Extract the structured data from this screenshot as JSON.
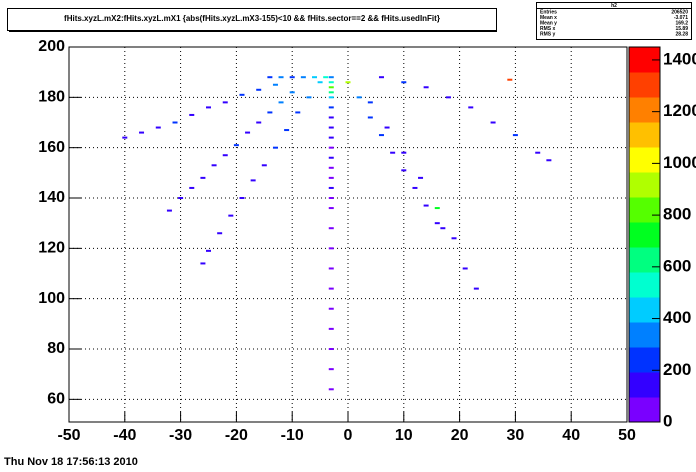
{
  "chart_data": {
    "type": "histogram2d",
    "title": "fHits.xyzL.mX2:fHits.xyzL.mX1  {abs(fHits.xyzL.mX3-155)<10 && fHits.sector==2  && fHits.usedInFit}",
    "footer": "Thu Nov 18 17:56:13 2010",
    "stats": {
      "name": "h2",
      "rows": [
        [
          "Entries",
          "206520"
        ],
        [
          "Mean x",
          "-3.071"
        ],
        [
          "Mean y",
          "169.2"
        ],
        [
          "RMS x",
          "15.89"
        ],
        [
          "RMS y",
          "28.28"
        ]
      ]
    },
    "xlim": [
      -50,
      50
    ],
    "xticks": [
      -50,
      -40,
      -30,
      -20,
      -10,
      0,
      10,
      20,
      30,
      40,
      50
    ],
    "ylim": [
      51,
      200
    ],
    "yticks": [
      60,
      80,
      100,
      120,
      140,
      160,
      180,
      200
    ],
    "zlim": [
      0,
      1450
    ],
    "zticks": [
      0,
      200,
      400,
      600,
      800,
      1000,
      1200,
      1400
    ],
    "grid": true,
    "palette": [
      "#7a00ff",
      "#3300ff",
      "#0033ff",
      "#0080ff",
      "#00ccff",
      "#00ffd0",
      "#00ff80",
      "#00ff20",
      "#55ff00",
      "#b0ff00",
      "#ffff00",
      "#ffc000",
      "#ff8000",
      "#ff4000",
      "#ff0000"
    ],
    "x": [
      -3,
      -3,
      -3,
      -3,
      -3,
      -3,
      -3,
      -3,
      -3,
      -3,
      -3,
      -3,
      -3,
      -3,
      -3,
      -3,
      -3,
      -3,
      -3,
      -3,
      -3,
      -3,
      -3,
      -3,
      -3,
      -40,
      -37,
      -34,
      -31,
      -28,
      -25,
      -22,
      -19,
      -16,
      -13,
      -32,
      -30,
      -28,
      -26,
      -24,
      -22,
      -20,
      -18,
      -16,
      -14,
      -12,
      -10,
      -25,
      -23,
      -21,
      -19,
      -17,
      -15,
      -13,
      -11,
      -9,
      -7,
      -5,
      0,
      2,
      4,
      6,
      8,
      10,
      12,
      14,
      16,
      17,
      4,
      7,
      10,
      13,
      16,
      19,
      21,
      23,
      6,
      10,
      14,
      18,
      22,
      26,
      30,
      34,
      36,
      -14,
      -12,
      -10,
      -8,
      -6,
      -4,
      29,
      -26
    ],
    "y": [
      188,
      186,
      184,
      182,
      180,
      176,
      172,
      168,
      164,
      160,
      156,
      152,
      148,
      144,
      140,
      136,
      128,
      120,
      112,
      104,
      96,
      88,
      80,
      72,
      64,
      164,
      166,
      168,
      170,
      173,
      176,
      178,
      181,
      183,
      185,
      135,
      140,
      144,
      148,
      153,
      157,
      161,
      166,
      170,
      174,
      178,
      182,
      119,
      126,
      133,
      140,
      147,
      153,
      160,
      167,
      174,
      180,
      186,
      186,
      180,
      172,
      165,
      158,
      151,
      144,
      137,
      130,
      128,
      178,
      168,
      158,
      148,
      136,
      124,
      112,
      104,
      188,
      186,
      184,
      180,
      176,
      170,
      165,
      158,
      155,
      188,
      188,
      188,
      188,
      188,
      188,
      187,
      114
    ],
    "z": [
      300,
      500,
      800,
      600,
      400,
      200,
      150,
      120,
      100,
      90,
      100,
      80,
      90,
      100,
      80,
      90,
      70,
      80,
      70,
      60,
      70,
      60,
      50,
      60,
      50,
      150,
      120,
      130,
      200,
      160,
      180,
      140,
      220,
      250,
      300,
      120,
      140,
      100,
      160,
      130,
      180,
      200,
      150,
      170,
      250,
      300,
      350,
      100,
      120,
      140,
      160,
      120,
      180,
      200,
      220,
      260,
      300,
      400,
      900,
      300,
      250,
      200,
      180,
      160,
      150,
      140,
      120,
      100,
      200,
      180,
      160,
      140,
      700,
      120,
      100,
      110,
      150,
      200,
      180,
      160,
      140,
      180,
      200,
      160,
      150,
      250,
      300,
      280,
      350,
      400,
      500,
      1300,
      100
    ]
  }
}
